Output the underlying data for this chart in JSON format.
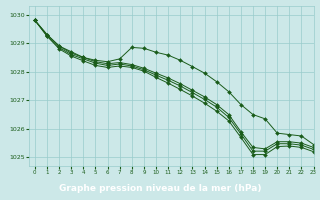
{
  "x": [
    0,
    1,
    2,
    3,
    4,
    5,
    6,
    7,
    8,
    9,
    10,
    11,
    12,
    13,
    14,
    15,
    16,
    17,
    18,
    19,
    20,
    21,
    22,
    23
  ],
  "line_top": [
    1029.8,
    1029.3,
    1028.9,
    1028.7,
    1028.5,
    1028.4,
    1028.35,
    1028.45,
    1028.85,
    1028.82,
    1028.68,
    1028.58,
    1028.4,
    1028.18,
    1027.95,
    1027.65,
    1027.3,
    1026.85,
    1026.5,
    1026.35,
    1025.85,
    1025.8,
    1025.75,
    1025.45
  ],
  "line_mid1": [
    1029.8,
    1029.3,
    1028.9,
    1028.65,
    1028.5,
    1028.35,
    1028.28,
    1028.32,
    1028.25,
    1028.12,
    1027.95,
    1027.78,
    1027.58,
    1027.35,
    1027.12,
    1026.85,
    1026.5,
    1025.9,
    1025.35,
    1025.3,
    1025.55,
    1025.55,
    1025.5,
    1025.35
  ],
  "line_mid2": [
    1029.8,
    1029.25,
    1028.85,
    1028.6,
    1028.45,
    1028.3,
    1028.22,
    1028.27,
    1028.2,
    1028.07,
    1027.88,
    1027.7,
    1027.5,
    1027.27,
    1027.03,
    1026.76,
    1026.4,
    1025.82,
    1025.22,
    1025.22,
    1025.48,
    1025.48,
    1025.43,
    1025.28
  ],
  "line_low": [
    1029.8,
    1029.25,
    1028.8,
    1028.55,
    1028.38,
    1028.22,
    1028.15,
    1028.2,
    1028.15,
    1028.02,
    1027.8,
    1027.6,
    1027.38,
    1027.15,
    1026.9,
    1026.62,
    1026.28,
    1025.7,
    1025.1,
    1025.1,
    1025.38,
    1025.4,
    1025.35,
    1025.2
  ],
  "bg_color": "#cce8e8",
  "line_color": "#1a5c1a",
  "grid_color": "#99cccc",
  "xlabel": "Graphe pression niveau de la mer (hPa)",
  "xlabel_bg": "#2d6e2d",
  "xlabel_fg": "#ffffff",
  "xlim": [
    -0.5,
    23
  ],
  "ylim": [
    1024.7,
    1030.3
  ],
  "yticks": [
    1025,
    1026,
    1027,
    1028,
    1029,
    1030
  ],
  "xticks": [
    0,
    1,
    2,
    3,
    4,
    5,
    6,
    7,
    8,
    9,
    10,
    11,
    12,
    13,
    14,
    15,
    16,
    17,
    18,
    19,
    20,
    21,
    22,
    23
  ]
}
